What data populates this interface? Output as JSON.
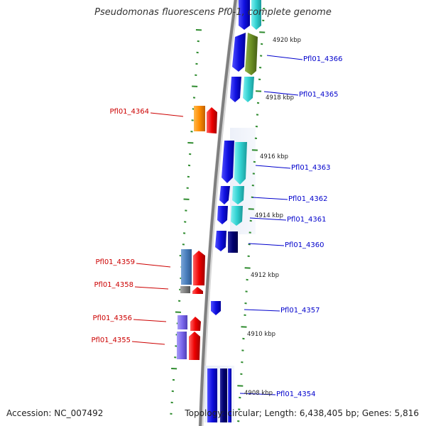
{
  "header": {
    "title": "Pseudomonas fluorescens Pf0-1, complete genome"
  },
  "footer": {
    "accession": "Accession: NC_007492",
    "topology": "Topology: circular; Length: 6,438,405 bp; Genes: 5,816"
  },
  "colors": {
    "backbone": "#7f7f7f",
    "tick": "#2e8b2e",
    "forward_label": "#0000cc",
    "reverse_label": "#cc0000",
    "blue_gene": "#1010e0",
    "cyan_gene": "#30d0d0",
    "olive_gene": "#6b8e23",
    "navy_gene": "#00006e",
    "red_gene": "#ee0000",
    "orange_gene": "#ff8c00",
    "steel_gene": "#4a7fbd",
    "gray_gene": "#7f7f7f",
    "violet_gene": "#7b68ee"
  },
  "scale_labels": [
    "4920 kbp",
    "4918 kbp",
    "4916 kbp",
    "4914 kbp",
    "4912 kbp",
    "4910 kbp",
    "4908 kbp"
  ],
  "genes_forward": [
    "Pfl01_4366",
    "Pfl01_4365",
    "Pfl01_4363",
    "Pfl01_4362",
    "Pfl01_4361",
    "Pfl01_4360",
    "Pfl01_4357",
    "Pfl01_4354"
  ],
  "genes_reverse": [
    "Pfl01_4364",
    "Pfl01_4359",
    "Pfl01_4358",
    "Pfl01_4356",
    "Pfl01_4355"
  ]
}
